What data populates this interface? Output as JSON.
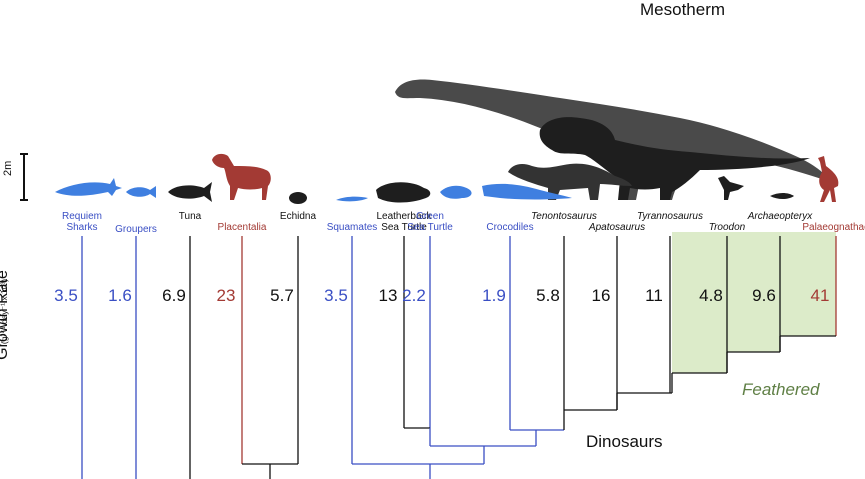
{
  "title": "Mesotherm",
  "scale_label": "2m",
  "axis": {
    "title": "Growth Rate",
    "unit": "(g¹ᐟ⁴ day⁻¹ x 10³)"
  },
  "groups": {
    "feathered": "Feathered",
    "dinosaurs": "Dinosaurs"
  },
  "taxa": [
    {
      "line1": "Requiem",
      "line2": "Sharks",
      "value": "3.5",
      "color": "blue"
    },
    {
      "line1": "Groupers",
      "line2": "",
      "value": "1.6",
      "color": "blue"
    },
    {
      "line1": "Tuna",
      "line2": "",
      "value": "6.9",
      "color": "black"
    },
    {
      "line1": "Placentalia",
      "line2": "",
      "value": "23",
      "color": "red"
    },
    {
      "line1": "Echidna",
      "line2": "",
      "value": "5.7",
      "color": "black"
    },
    {
      "line1": "Squamates",
      "line2": "",
      "value": "3.5",
      "color": "blue"
    },
    {
      "line1": "Leatherback",
      "line2": "Sea Turtle",
      "value": "13",
      "color": "black"
    },
    {
      "line1": "Green",
      "line2": "Sea Turtle",
      "value": "2.2",
      "color": "blue"
    },
    {
      "line1": "Crocodiles",
      "line2": "",
      "value": "1.9",
      "color": "blue"
    },
    {
      "line1": "Tenontosaurus",
      "line2": "",
      "value": "5.8",
      "color": "black"
    },
    {
      "line1": "Apatosaurus",
      "line2": "",
      "value": "16",
      "color": "black"
    },
    {
      "line1": "Tyrannosaurus",
      "line2": "",
      "value": "11",
      "color": "black"
    },
    {
      "line1": "Troodon",
      "line2": "",
      "value": "4.8",
      "color": "black"
    },
    {
      "line1": "Archaeopteryx",
      "line2": "",
      "value": "9.6",
      "color": "black"
    },
    {
      "line1": "Palaeognathae",
      "line2": "",
      "value": "41",
      "color": "red"
    }
  ],
  "colors": {
    "blue": "#3a4fc4",
    "red": "#a33a34",
    "black": "#111111",
    "feathered_fill": "#dcebc9",
    "feathered_text": "#5f7f45",
    "silhouette_dark": "#2a2a2a",
    "silhouette_grey": "#555555",
    "silhouette_blue": "#3f7fe0",
    "silhouette_red": "#a33a34"
  }
}
